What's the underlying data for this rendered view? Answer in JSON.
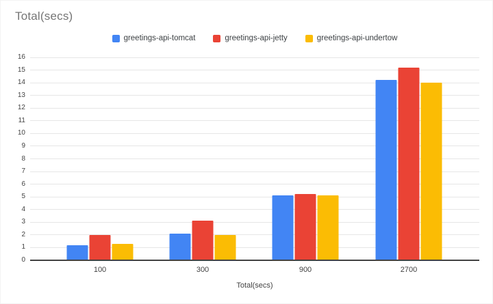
{
  "chart_data": {
    "type": "bar",
    "title": "Total(secs)",
    "xlabel": "Total(secs)",
    "ylabel": "",
    "categories": [
      "100",
      "300",
      "900",
      "2700"
    ],
    "series": [
      {
        "name": "greetings-api-tomcat",
        "color": "#4285F4",
        "values": [
          1.2,
          2.1,
          5.1,
          14.2
        ]
      },
      {
        "name": "greetings-api-jetty",
        "color": "#EA4335",
        "values": [
          2.0,
          3.1,
          5.2,
          15.2
        ]
      },
      {
        "name": "greetings-api-undertow",
        "color": "#FBBC04",
        "values": [
          1.3,
          2.0,
          5.1,
          14.0
        ]
      }
    ],
    "ylim": [
      0,
      16
    ],
    "ytick_step": 1,
    "grid": true,
    "legend_position": "top"
  },
  "styles": {
    "title_color": "#757575",
    "axis_label_color": "#424242",
    "legend_text_color": "#3c4043",
    "gridline_color": "#e6e6e6",
    "baseline_color": "#424242",
    "background": "#ffffff"
  }
}
